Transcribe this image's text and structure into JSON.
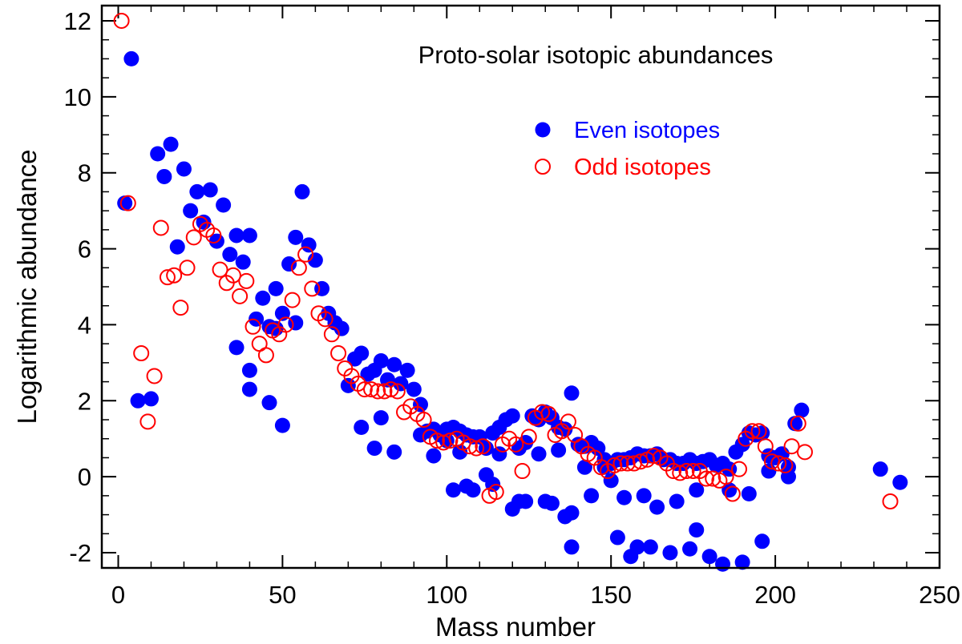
{
  "chart_data": {
    "type": "scatter",
    "title": "Proto-solar isotopic abundances",
    "xlabel": "Mass number",
    "ylabel": "Logarithmic abundance",
    "xlim": [
      -5,
      250
    ],
    "ylim": [
      -2.4,
      12.4
    ],
    "xticks": [
      0,
      50,
      100,
      150,
      200,
      250
    ],
    "xtick_labels": [
      "0",
      "50",
      "100",
      "150",
      "200",
      "250"
    ],
    "yticks": [
      -2,
      0,
      2,
      4,
      6,
      8,
      10,
      12
    ],
    "ytick_labels": [
      "-2",
      "0",
      "2",
      "4",
      "6",
      "8",
      "10",
      "12"
    ],
    "legend": "top-right",
    "series": [
      {
        "name": "Even isotopes",
        "color": "#0000ff",
        "marker": "filled-circle",
        "points": [
          [
            2,
            7.2
          ],
          [
            4,
            11.0
          ],
          [
            6,
            2.0
          ],
          [
            10,
            2.05
          ],
          [
            12,
            8.5
          ],
          [
            14,
            7.9
          ],
          [
            16,
            8.75
          ],
          [
            18,
            6.05
          ],
          [
            20,
            8.1
          ],
          [
            22,
            7.0
          ],
          [
            24,
            7.5
          ],
          [
            26,
            6.7
          ],
          [
            28,
            7.55
          ],
          [
            30,
            6.2
          ],
          [
            32,
            7.15
          ],
          [
            34,
            5.85
          ],
          [
            36,
            6.35
          ],
          [
            36,
            3.4
          ],
          [
            38,
            5.65
          ],
          [
            40,
            6.35
          ],
          [
            40,
            2.8
          ],
          [
            40,
            2.3
          ],
          [
            42,
            4.15
          ],
          [
            44,
            4.7
          ],
          [
            46,
            1.95
          ],
          [
            46,
            3.95
          ],
          [
            48,
            4.95
          ],
          [
            48,
            3.9
          ],
          [
            50,
            4.3
          ],
          [
            50,
            1.35
          ],
          [
            52,
            5.6
          ],
          [
            54,
            6.3
          ],
          [
            54,
            4.05
          ],
          [
            56,
            7.5
          ],
          [
            58,
            6.1
          ],
          [
            60,
            5.7
          ],
          [
            62,
            4.95
          ],
          [
            64,
            4.3
          ],
          [
            66,
            4.05
          ],
          [
            68,
            3.9
          ],
          [
            70,
            2.4
          ],
          [
            72,
            3.1
          ],
          [
            74,
            3.25
          ],
          [
            74,
            1.3
          ],
          [
            76,
            2.7
          ],
          [
            78,
            2.8
          ],
          [
            78,
            0.75
          ],
          [
            80,
            3.05
          ],
          [
            80,
            1.55
          ],
          [
            82,
            2.55
          ],
          [
            84,
            2.95
          ],
          [
            84,
            0.65
          ],
          [
            86,
            2.45
          ],
          [
            88,
            2.8
          ],
          [
            90,
            2.3
          ],
          [
            92,
            1.1
          ],
          [
            92,
            1.9
          ],
          [
            94,
            1.2
          ],
          [
            96,
            1.25
          ],
          [
            96,
            0.55
          ],
          [
            98,
            1.1
          ],
          [
            100,
            1.25
          ],
          [
            100,
            0.95
          ],
          [
            102,
            1.3
          ],
          [
            102,
            -0.35
          ],
          [
            104,
            1.2
          ],
          [
            104,
            0.65
          ],
          [
            106,
            1.1
          ],
          [
            106,
            -0.25
          ],
          [
            108,
            1.05
          ],
          [
            108,
            -0.35
          ],
          [
            110,
            1.05
          ],
          [
            112,
            0.75
          ],
          [
            112,
            0.05
          ],
          [
            114,
            1.15
          ],
          [
            114,
            -0.2
          ],
          [
            116,
            1.3
          ],
          [
            116,
            0.6
          ],
          [
            118,
            1.5
          ],
          [
            120,
            1.6
          ],
          [
            120,
            -0.85
          ],
          [
            122,
            0.75
          ],
          [
            122,
            -0.65
          ],
          [
            124,
            0.9
          ],
          [
            124,
            -0.65
          ],
          [
            126,
            1.6
          ],
          [
            128,
            1.5
          ],
          [
            128,
            0.6
          ],
          [
            130,
            1.7
          ],
          [
            130,
            -0.65
          ],
          [
            132,
            1.55
          ],
          [
            132,
            -0.7
          ],
          [
            134,
            1.3
          ],
          [
            134,
            0.7
          ],
          [
            136,
            1.25
          ],
          [
            136,
            -1.05
          ],
          [
            138,
            2.2
          ],
          [
            138,
            -0.95
          ],
          [
            138,
            -1.85
          ],
          [
            140,
            0.85
          ],
          [
            142,
            0.8
          ],
          [
            142,
            0.25
          ],
          [
            144,
            0.9
          ],
          [
            144,
            -0.5
          ],
          [
            146,
            0.75
          ],
          [
            148,
            0.25
          ],
          [
            148,
            0.45
          ],
          [
            150,
            0.35
          ],
          [
            150,
            -0.1
          ],
          [
            152,
            0.45
          ],
          [
            152,
            -1.6
          ],
          [
            154,
            0.45
          ],
          [
            154,
            -0.55
          ],
          [
            156,
            0.5
          ],
          [
            156,
            -2.1
          ],
          [
            158,
            0.6
          ],
          [
            158,
            -1.85
          ],
          [
            160,
            0.55
          ],
          [
            160,
            -0.5
          ],
          [
            162,
            0.55
          ],
          [
            162,
            -1.85
          ],
          [
            164,
            0.6
          ],
          [
            164,
            -0.8
          ],
          [
            166,
            0.45
          ],
          [
            168,
            0.45
          ],
          [
            168,
            -2.0
          ],
          [
            170,
            0.35
          ],
          [
            170,
            -0.65
          ],
          [
            172,
            0.35
          ],
          [
            174,
            0.45
          ],
          [
            174,
            -1.9
          ],
          [
            176,
            0.35
          ],
          [
            176,
            -0.35
          ],
          [
            176,
            -1.4
          ],
          [
            178,
            0.4
          ],
          [
            180,
            0.45
          ],
          [
            180,
            -2.1
          ],
          [
            182,
            0.3
          ],
          [
            184,
            0.35
          ],
          [
            184,
            -2.3
          ],
          [
            186,
            0.2
          ],
          [
            186,
            -0.35
          ],
          [
            188,
            0.65
          ],
          [
            190,
            0.85
          ],
          [
            190,
            -2.25
          ],
          [
            192,
            1.15
          ],
          [
            192,
            -0.45
          ],
          [
            194,
            1.1
          ],
          [
            196,
            1.15
          ],
          [
            196,
            -1.7
          ],
          [
            198,
            0.55
          ],
          [
            198,
            0.15
          ],
          [
            200,
            0.5
          ],
          [
            202,
            0.6
          ],
          [
            204,
            0.25
          ],
          [
            204,
            0.0
          ],
          [
            206,
            1.4
          ],
          [
            208,
            1.75
          ],
          [
            232,
            0.2
          ],
          [
            238,
            -0.15
          ]
        ]
      },
      {
        "name": "Odd isotopes",
        "color": "#ff0000",
        "marker": "open-circle",
        "points": [
          [
            1,
            12.0
          ],
          [
            3,
            7.2
          ],
          [
            7,
            3.25
          ],
          [
            9,
            1.45
          ],
          [
            11,
            2.65
          ],
          [
            13,
            6.55
          ],
          [
            15,
            5.25
          ],
          [
            17,
            5.3
          ],
          [
            19,
            4.45
          ],
          [
            21,
            5.5
          ],
          [
            23,
            6.3
          ],
          [
            25,
            6.65
          ],
          [
            27,
            6.5
          ],
          [
            29,
            6.35
          ],
          [
            31,
            5.45
          ],
          [
            33,
            5.1
          ],
          [
            35,
            5.3
          ],
          [
            37,
            4.75
          ],
          [
            39,
            5.15
          ],
          [
            41,
            3.95
          ],
          [
            43,
            3.5
          ],
          [
            45,
            3.2
          ],
          [
            47,
            3.85
          ],
          [
            49,
            3.75
          ],
          [
            51,
            4.0
          ],
          [
            53,
            4.65
          ],
          [
            55,
            5.5
          ],
          [
            57,
            5.85
          ],
          [
            59,
            4.95
          ],
          [
            61,
            4.3
          ],
          [
            63,
            4.15
          ],
          [
            65,
            3.75
          ],
          [
            67,
            3.25
          ],
          [
            69,
            2.85
          ],
          [
            71,
            2.65
          ],
          [
            73,
            2.45
          ],
          [
            75,
            2.3
          ],
          [
            77,
            2.3
          ],
          [
            79,
            2.25
          ],
          [
            81,
            2.25
          ],
          [
            83,
            2.3
          ],
          [
            85,
            2.25
          ],
          [
            87,
            1.7
          ],
          [
            89,
            1.85
          ],
          [
            91,
            1.65
          ],
          [
            93,
            1.5
          ],
          [
            95,
            1.05
          ],
          [
            97,
            0.95
          ],
          [
            99,
            0.9
          ],
          [
            101,
            0.95
          ],
          [
            103,
            1.0
          ],
          [
            105,
            0.9
          ],
          [
            107,
            0.8
          ],
          [
            109,
            0.75
          ],
          [
            111,
            0.8
          ],
          [
            113,
            -0.5
          ],
          [
            115,
            -0.4
          ],
          [
            117,
            0.85
          ],
          [
            119,
            1.0
          ],
          [
            121,
            0.85
          ],
          [
            123,
            0.15
          ],
          [
            125,
            1.05
          ],
          [
            127,
            1.55
          ],
          [
            129,
            1.7
          ],
          [
            131,
            1.65
          ],
          [
            133,
            1.1
          ],
          [
            135,
            1.2
          ],
          [
            137,
            1.45
          ],
          [
            139,
            1.1
          ],
          [
            141,
            0.8
          ],
          [
            143,
            0.6
          ],
          [
            145,
            0.5
          ],
          [
            147,
            0.25
          ],
          [
            149,
            0.15
          ],
          [
            151,
            0.3
          ],
          [
            153,
            0.35
          ],
          [
            155,
            0.35
          ],
          [
            157,
            0.35
          ],
          [
            159,
            0.4
          ],
          [
            161,
            0.45
          ],
          [
            163,
            0.55
          ],
          [
            165,
            0.5
          ],
          [
            167,
            0.35
          ],
          [
            169,
            0.15
          ],
          [
            171,
            0.1
          ],
          [
            173,
            0.15
          ],
          [
            175,
            0.15
          ],
          [
            177,
            0.15
          ],
          [
            179,
            -0.05
          ],
          [
            181,
            -0.05
          ],
          [
            183,
            -0.1
          ],
          [
            185,
            0.0
          ],
          [
            187,
            -0.45
          ],
          [
            189,
            0.2
          ],
          [
            191,
            1.0
          ],
          [
            193,
            1.2
          ],
          [
            195,
            1.2
          ],
          [
            197,
            0.8
          ],
          [
            199,
            0.4
          ],
          [
            201,
            0.35
          ],
          [
            203,
            0.3
          ],
          [
            205,
            0.8
          ],
          [
            207,
            1.4
          ],
          [
            209,
            0.65
          ],
          [
            235,
            -0.65
          ]
        ]
      }
    ]
  }
}
